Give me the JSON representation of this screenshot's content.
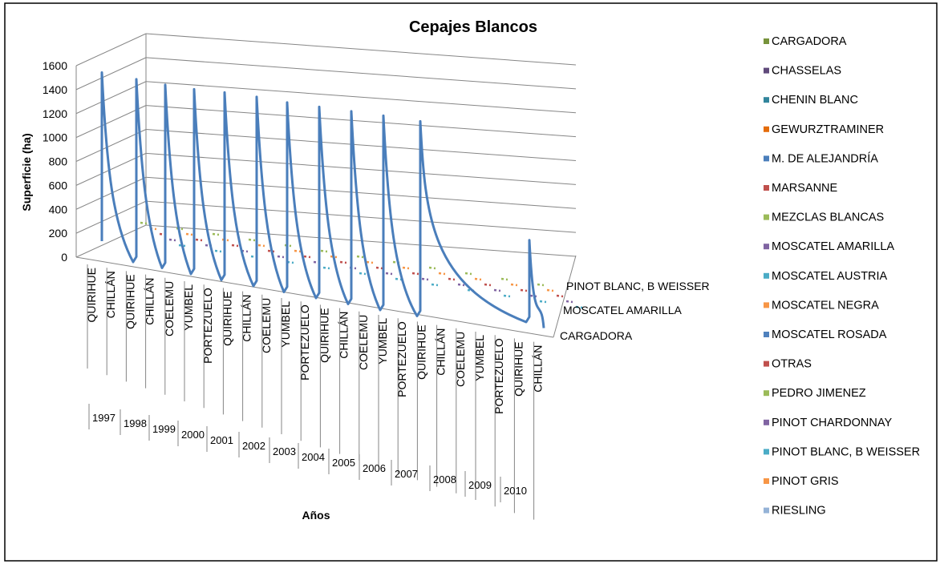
{
  "chart_data": {
    "type": "line",
    "title": "Cepajes Blancos",
    "ylabel": "Superficie (ha)",
    "xlabel": "Años",
    "ylim": [
      0,
      1600
    ],
    "y_ticks": [
      0,
      200,
      400,
      600,
      800,
      1000,
      1200,
      1400,
      1600
    ],
    "grid": true,
    "legend_position": "right",
    "x_categories": [
      "QUIRIHUE",
      "CHILLÁN",
      "QUIRIHUE",
      "CHILLÁN",
      "COELEMU",
      "YUMBEL",
      "PORTEZUELO",
      "QUIRIHUE",
      "CHILLÁN",
      "COELEMU",
      "YUMBEL",
      "PORTEZUELO",
      "QUIRIHUE",
      "CHILLÁN",
      "COELEMU",
      "YUMBEL",
      "PORTEZUELO",
      "QUIRIHUE",
      "CHILLÁN",
      "COELEMU",
      "YUMBEL",
      "PORTEZUELO",
      "QUIRIHUE",
      "CHILLÁN"
    ],
    "years": [
      "1997",
      "1998",
      "1999",
      "2000",
      "2001",
      "2002",
      "2003",
      "2004",
      "2005",
      "2006",
      "2007",
      "2008",
      "2009",
      "2010"
    ],
    "depth_labels": [
      "PINOT BLANC, B WEISSER",
      "MOSCATEL AMARILLA",
      "CARGADORA"
    ],
    "main_series": {
      "name": "M. DE ALEJANDRÍA",
      "color": "#4A7EBB",
      "peaks": [
        1550,
        1530,
        1520,
        1520,
        1530,
        1530,
        1520,
        1520,
        1520,
        1520,
        1510,
        550
      ],
      "baseline": 60
    },
    "legend": [
      {
        "name": "CARGADORA",
        "color": "#77933C"
      },
      {
        "name": "CHASSELAS",
        "color": "#604A7B"
      },
      {
        "name": "CHENIN BLANC",
        "color": "#31859C"
      },
      {
        "name": "GEWURZTRAMINER",
        "color": "#E46C0A"
      },
      {
        "name": "M. DE ALEJANDRÍA",
        "color": "#4A7EBB"
      },
      {
        "name": "MARSANNE",
        "color": "#C0504D"
      },
      {
        "name": "MEZCLAS BLANCAS",
        "color": "#9BBB59"
      },
      {
        "name": "MOSCATEL AMARILLA",
        "color": "#8064A2"
      },
      {
        "name": "MOSCATEL AUSTRIA",
        "color": "#4BACC6"
      },
      {
        "name": "MOSCATEL NEGRA",
        "color": "#F79646"
      },
      {
        "name": "MOSCATEL ROSADA",
        "color": "#4F81BD"
      },
      {
        "name": "OTRAS",
        "color": "#C0504D"
      },
      {
        "name": "PEDRO JIMENEZ",
        "color": "#9BBB59"
      },
      {
        "name": "PINOT CHARDONNAY",
        "color": "#8064A2"
      },
      {
        "name": "PINOT BLANC,  B WEISSER",
        "color": "#4BACC6"
      },
      {
        "name": "PINOT GRIS",
        "color": "#F79646"
      },
      {
        "name": "RIESLING",
        "color": "#95B3D7"
      }
    ]
  }
}
